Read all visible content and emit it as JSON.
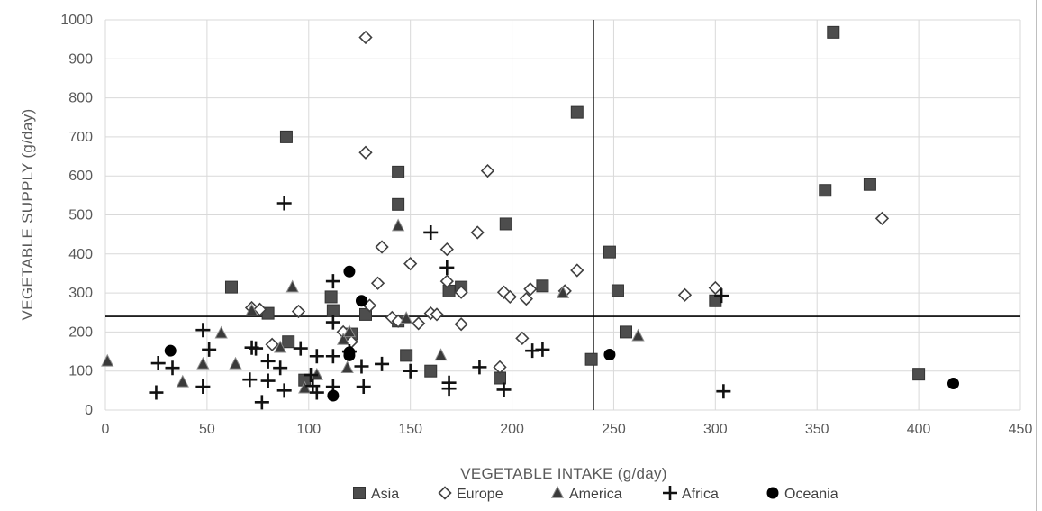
{
  "chart_data": {
    "type": "scatter",
    "xlabel": "VEGETABLE INTAKE (g/day)",
    "ylabel": "VEGETABLE SUPPLY (g/day)",
    "xlim": [
      0,
      450
    ],
    "ylim": [
      0,
      1000
    ],
    "x_ticks": [
      0,
      50,
      100,
      150,
      200,
      250,
      300,
      350,
      400,
      450
    ],
    "y_ticks": [
      0,
      100,
      200,
      300,
      400,
      500,
      600,
      700,
      800,
      900,
      1000
    ],
    "grid": true,
    "legend_position": "bottom",
    "reference_lines": {
      "x": 240,
      "y": 240
    },
    "colors": {
      "marker": "#404040",
      "grid": "#d9d9d9",
      "axis_text": "#595959"
    },
    "series": [
      {
        "name": "Asia",
        "marker": "square-filled",
        "points": [
          [
            62,
            315
          ],
          [
            80,
            248
          ],
          [
            89,
            700
          ],
          [
            90,
            175
          ],
          [
            98,
            77
          ],
          [
            111,
            290
          ],
          [
            112,
            255
          ],
          [
            121,
            195
          ],
          [
            128,
            245
          ],
          [
            144,
            610
          ],
          [
            144,
            527
          ],
          [
            144,
            228
          ],
          [
            148,
            140
          ],
          [
            160,
            100
          ],
          [
            169,
            305
          ],
          [
            175,
            315
          ],
          [
            194,
            82
          ],
          [
            197,
            477
          ],
          [
            215,
            318
          ],
          [
            232,
            763
          ],
          [
            239,
            130
          ],
          [
            248,
            405
          ],
          [
            252,
            306
          ],
          [
            256,
            200
          ],
          [
            300,
            280
          ],
          [
            354,
            563
          ],
          [
            358,
            968
          ],
          [
            376,
            578
          ],
          [
            400,
            92
          ]
        ]
      },
      {
        "name": "Europe",
        "marker": "diamond-open",
        "points": [
          [
            72,
            262
          ],
          [
            76,
            258
          ],
          [
            82,
            168
          ],
          [
            95,
            253
          ],
          [
            117,
            200
          ],
          [
            121,
            175
          ],
          [
            128,
            955
          ],
          [
            128,
            660
          ],
          [
            130,
            268
          ],
          [
            134,
            325
          ],
          [
            136,
            418
          ],
          [
            141,
            237
          ],
          [
            144,
            228
          ],
          [
            150,
            375
          ],
          [
            154,
            222
          ],
          [
            160,
            248
          ],
          [
            163,
            245
          ],
          [
            168,
            412
          ],
          [
            168,
            330
          ],
          [
            175,
            220
          ],
          [
            175,
            302
          ],
          [
            183,
            455
          ],
          [
            188,
            613
          ],
          [
            194,
            110
          ],
          [
            205,
            184
          ],
          [
            207,
            285
          ],
          [
            209,
            310
          ],
          [
            196,
            302
          ],
          [
            199,
            290
          ],
          [
            226,
            305
          ],
          [
            232,
            358
          ],
          [
            285,
            295
          ],
          [
            300,
            313
          ],
          [
            382,
            491
          ]
        ]
      },
      {
        "name": "America",
        "marker": "triangle-filled",
        "points": [
          [
            1,
            125
          ],
          [
            38,
            72
          ],
          [
            48,
            118
          ],
          [
            57,
            197
          ],
          [
            64,
            118
          ],
          [
            72,
            255
          ],
          [
            86,
            160
          ],
          [
            92,
            315
          ],
          [
            98,
            56
          ],
          [
            104,
            90
          ],
          [
            117,
            180
          ],
          [
            119,
            108
          ],
          [
            120,
            200
          ],
          [
            144,
            472
          ],
          [
            148,
            235
          ],
          [
            165,
            140
          ],
          [
            225,
            300
          ],
          [
            262,
            190
          ]
        ]
      },
      {
        "name": "Africa",
        "marker": "plus",
        "points": [
          [
            25,
            45
          ],
          [
            26,
            120
          ],
          [
            33,
            108
          ],
          [
            48,
            205
          ],
          [
            48,
            60
          ],
          [
            51,
            155
          ],
          [
            71,
            78
          ],
          [
            72,
            160
          ],
          [
            74,
            158
          ],
          [
            77,
            20
          ],
          [
            80,
            75
          ],
          [
            80,
            125
          ],
          [
            86,
            108
          ],
          [
            88,
            530
          ],
          [
            88,
            50
          ],
          [
            96,
            158
          ],
          [
            101,
            90
          ],
          [
            102,
            62
          ],
          [
            104,
            138
          ],
          [
            104,
            45
          ],
          [
            112,
            330
          ],
          [
            112,
            225
          ],
          [
            112,
            138
          ],
          [
            112,
            60
          ],
          [
            120,
            150
          ],
          [
            126,
            112
          ],
          [
            127,
            60
          ],
          [
            136,
            118
          ],
          [
            150,
            100
          ],
          [
            160,
            455
          ],
          [
            168,
            365
          ],
          [
            169,
            55
          ],
          [
            169,
            70
          ],
          [
            184,
            110
          ],
          [
            196,
            52
          ],
          [
            210,
            152
          ],
          [
            215,
            155
          ],
          [
            303,
            293
          ],
          [
            304,
            48
          ]
        ]
      },
      {
        "name": "Oceania",
        "marker": "circle-filled",
        "points": [
          [
            32,
            152
          ],
          [
            112,
            37
          ],
          [
            120,
            355
          ],
          [
            120,
            148
          ],
          [
            120,
            140
          ],
          [
            126,
            280
          ],
          [
            248,
            142
          ],
          [
            417,
            68
          ]
        ]
      }
    ]
  }
}
